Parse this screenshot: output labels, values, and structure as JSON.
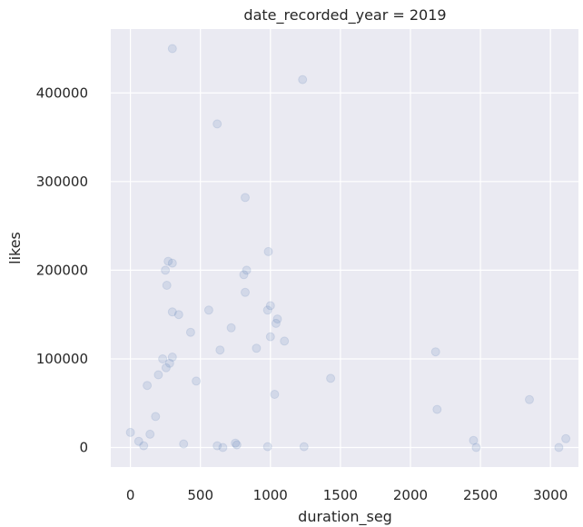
{
  "chart_data": {
    "type": "scatter",
    "title": "date_recorded_year = 2019",
    "xlabel": "duration_seg",
    "ylabel": "likes",
    "xlim": [
      -140,
      3200
    ],
    "ylim": [
      -22000,
      472000
    ],
    "xticks": [
      0,
      500,
      1000,
      1500,
      2000,
      2500,
      3000
    ],
    "yticks": [
      0,
      100000,
      200000,
      300000,
      400000
    ],
    "xtick_labels": [
      "0",
      "500",
      "1000",
      "1500",
      "2000",
      "2500",
      "3000"
    ],
    "ytick_labels": [
      "0",
      "100000",
      "200000",
      "300000",
      "400000"
    ],
    "grid": true,
    "legend": "none",
    "colors": {
      "background": "#eaeaf2",
      "point": "#4c72b0",
      "grid": "#ffffff"
    },
    "point_alpha": 0.15,
    "series": [
      {
        "x": [
          300,
          620,
          1230,
          820,
          985,
          270,
          300,
          250,
          830,
          810,
          260,
          300,
          345,
          1000,
          980,
          820,
          560,
          230,
          255,
          280,
          300,
          470,
          640,
          900,
          1000,
          1040,
          1430,
          2180,
          2190,
          2850,
          2450,
          2470,
          3110,
          3060,
          0,
          60,
          95,
          140,
          180,
          1240,
          120,
          200,
          430,
          720,
          1050,
          1100,
          660,
          760,
          380,
          620,
          750,
          980,
          1030
        ],
        "y": [
          450000,
          365000,
          415000,
          282000,
          221000,
          210000,
          208000,
          200000,
          200000,
          195000,
          183000,
          153000,
          150000,
          160000,
          155000,
          175000,
          155000,
          100000,
          90000,
          95000,
          102000,
          75000,
          110000,
          112000,
          125000,
          140000,
          78000,
          108000,
          43000,
          54000,
          8000,
          0,
          10000,
          0,
          17000,
          7000,
          2000,
          15000,
          35000,
          1000,
          70000,
          82000,
          130000,
          135000,
          145000,
          120000,
          0,
          3000,
          4000,
          2000,
          5000,
          1000,
          60000
        ]
      }
    ]
  }
}
